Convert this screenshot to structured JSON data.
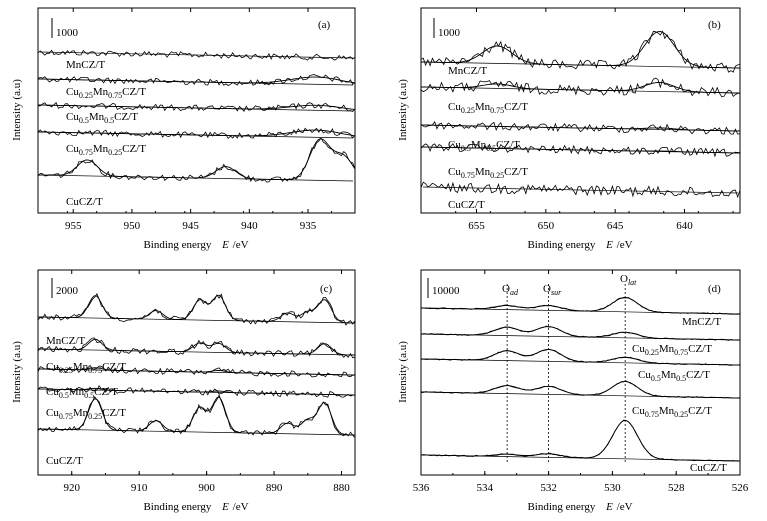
{
  "figure": {
    "panels": [
      {
        "tag": "(a)",
        "scale_bar": "1000",
        "xlabel_text": "Binding energy",
        "xlabel_var": "E",
        "xlabel_unit": "/eV",
        "ylabel": "Intensity (a.u)",
        "ticks": [
          "955",
          "950",
          "945",
          "940",
          "935"
        ],
        "xrange": [
          958,
          931
        ],
        "samples": [
          "MnCZ/T",
          "Cu0.25Mn0.75CZ/T",
          "Cu0.5Mn0.5CZ/T",
          "Cu0.75Mn0.25CZ/T",
          "CuCZ/T"
        ],
        "peak_positions": [
          934.3,
          932.0,
          942.0,
          953.8
        ]
      },
      {
        "tag": "(b)",
        "scale_bar": "1000",
        "xlabel_text": "Binding energy",
        "xlabel_var": "E",
        "xlabel_unit": "/eV",
        "ylabel": "Intensity (a.u)",
        "ticks": [
          "655",
          "650",
          "645",
          "640"
        ],
        "xrange": [
          659,
          636
        ],
        "samples": [
          "MnCZ/T",
          "Cu0.25Mn0.75CZ/T",
          "Cu0.5Mn0.5CZ/T",
          "Cu0.75Mn0.25CZ/T",
          "CuCZ/T"
        ],
        "peak_positions": [
          641.8,
          653.5
        ]
      },
      {
        "tag": "(c)",
        "scale_bar": "2000",
        "xlabel_text": "Binding energy",
        "xlabel_var": "E",
        "xlabel_unit": "/eV",
        "ylabel": "Intensity (a.u)",
        "ticks": [
          "920",
          "910",
          "900",
          "890",
          "880"
        ],
        "xrange": [
          925,
          878
        ],
        "samples": [
          "MnCZ/T",
          "Cu0.25Mn0.75CZ/T",
          "Cu0.5Mn0.5CZ/T",
          "Cu0.75Mn0.25CZ/T",
          "CuCZ/T"
        ],
        "peak_positions": [
          916.5,
          907.5,
          901.0,
          898.2,
          888.0,
          885.0,
          882.5
        ]
      },
      {
        "tag": "(d)",
        "scale_bar": "10000",
        "xlabel_text": "Binding energy",
        "xlabel_var": "E",
        "xlabel_unit": "/eV",
        "ylabel": "Intensity (a.u)",
        "ticks": [
          "536",
          "534",
          "532",
          "530",
          "528",
          "526"
        ],
        "xrange": [
          536,
          526
        ],
        "samples": [
          "MnCZ/T",
          "Cu0.25Mn0.75CZ/T",
          "Cu0.5Mn0.5CZ/T",
          "Cu0.75Mn0.25CZ/T",
          "CuCZ/T"
        ],
        "peak_labels": [
          "O",
          "ad",
          "O",
          "sur",
          "O",
          "lat"
        ],
        "peak_positions": [
          533.3,
          532.0,
          529.6
        ]
      }
    ]
  },
  "chart_data": [
    {
      "type": "line",
      "title": "(a)",
      "xlabel": "Binding energy E /eV",
      "ylabel": "Intensity (a.u)",
      "xlim": [
        958,
        931
      ],
      "series": [
        {
          "name": "MnCZ/T",
          "peaks": []
        },
        {
          "name": "Cu0.25Mn0.75CZ/T",
          "peaks": [
            {
              "x": 934.3,
              "h": 0.6
            }
          ]
        },
        {
          "name": "Cu0.5Mn0.5CZ/T",
          "peaks": [
            {
              "x": 934.3,
              "h": 0.5
            }
          ]
        },
        {
          "name": "Cu0.75Mn0.25CZ/T",
          "peaks": [
            {
              "x": 934.3,
              "h": 0.6
            }
          ]
        },
        {
          "name": "CuCZ/T",
          "peaks": [
            {
              "x": 934.0,
              "h": 1.0
            },
            {
              "x": 932.0,
              "h": 0.6
            },
            {
              "x": 942.0,
              "h": 0.3
            },
            {
              "x": 953.8,
              "h": 0.4
            }
          ]
        }
      ]
    },
    {
      "type": "line",
      "title": "(b)",
      "xlabel": "Binding energy E /eV",
      "ylabel": "Intensity (a.u)",
      "xlim": [
        659,
        636
      ],
      "series": [
        {
          "name": "MnCZ/T",
          "peaks": [
            {
              "x": 641.8,
              "h": 1.0
            },
            {
              "x": 653.5,
              "h": 0.5
            }
          ]
        },
        {
          "name": "Cu0.25Mn0.75CZ/T",
          "peaks": [
            {
              "x": 641.8,
              "h": 0.5
            },
            {
              "x": 653.5,
              "h": 0.25
            }
          ]
        },
        {
          "name": "Cu0.5Mn0.5CZ/T",
          "peaks": [
            {
              "x": 641.8,
              "h": 0.2
            }
          ]
        },
        {
          "name": "Cu0.75Mn0.25CZ/T",
          "peaks": [
            {
              "x": 641.8,
              "h": 0.1
            }
          ]
        },
        {
          "name": "CuCZ/T",
          "peaks": []
        }
      ]
    },
    {
      "type": "line",
      "title": "(c)",
      "xlabel": "Binding energy E /eV",
      "ylabel": "Intensity (a.u)",
      "xlim": [
        925,
        878
      ],
      "series": [
        {
          "name": "MnCZ/T",
          "peaks": [
            {
              "x": 916.5,
              "h": 0.9
            },
            {
              "x": 907.5,
              "h": 0.35
            },
            {
              "x": 901.0,
              "h": 0.8
            },
            {
              "x": 898.2,
              "h": 1.0
            },
            {
              "x": 888.0,
              "h": 0.35
            },
            {
              "x": 885.0,
              "h": 0.4
            },
            {
              "x": 882.5,
              "h": 0.9
            }
          ]
        },
        {
          "name": "Cu0.25Mn0.75CZ/T",
          "peaks": [
            {
              "x": 916.5,
              "h": 0.6
            },
            {
              "x": 901.0,
              "h": 0.5
            },
            {
              "x": 898.2,
              "h": 0.5
            },
            {
              "x": 882.5,
              "h": 0.6
            }
          ]
        },
        {
          "name": "Cu0.5Mn0.5CZ/T",
          "peaks": [
            {
              "x": 916.5,
              "h": 0.3
            },
            {
              "x": 898.2,
              "h": 0.25
            }
          ]
        },
        {
          "name": "Cu0.75Mn0.25CZ/T",
          "peaks": [
            {
              "x": 916.5,
              "h": 0.25
            },
            {
              "x": 898.2,
              "h": 0.2
            }
          ]
        },
        {
          "name": "CuCZ/T",
          "peaks": [
            {
              "x": 916.5,
              "h": 0.9
            },
            {
              "x": 907.5,
              "h": 0.3
            },
            {
              "x": 901.0,
              "h": 0.7
            },
            {
              "x": 898.2,
              "h": 1.0
            },
            {
              "x": 888.0,
              "h": 0.3
            },
            {
              "x": 885.0,
              "h": 0.4
            },
            {
              "x": 882.5,
              "h": 0.9
            }
          ]
        }
      ]
    },
    {
      "type": "line",
      "title": "(d)",
      "xlabel": "Binding energy E /eV",
      "ylabel": "Intensity (a.u)",
      "xlim": [
        536,
        526
      ],
      "series": [
        {
          "name": "MnCZ/T",
          "peaks": [
            {
              "x": 533.3,
              "h": 0.25
            },
            {
              "x": 532.0,
              "h": 0.3
            },
            {
              "x": 529.6,
              "h": 0.9
            }
          ]
        },
        {
          "name": "Cu0.25Mn0.75CZ/T",
          "peaks": [
            {
              "x": 533.3,
              "h": 0.6
            },
            {
              "x": 532.0,
              "h": 0.7
            },
            {
              "x": 529.6,
              "h": 0.4
            }
          ]
        },
        {
          "name": "Cu0.5Mn0.5CZ/T",
          "peaks": [
            {
              "x": 533.3,
              "h": 0.7
            },
            {
              "x": 532.0,
              "h": 0.85
            },
            {
              "x": 529.6,
              "h": 0.4
            }
          ]
        },
        {
          "name": "Cu0.75Mn0.25CZ/T",
          "peaks": [
            {
              "x": 533.3,
              "h": 0.5
            },
            {
              "x": 532.0,
              "h": 0.5
            },
            {
              "x": 529.6,
              "h": 0.9
            }
          ]
        },
        {
          "name": "CuCZ/T",
          "peaks": [
            {
              "x": 533.3,
              "h": 0.1
            },
            {
              "x": 532.0,
              "h": 0.15
            },
            {
              "x": 529.6,
              "h": 1.6
            }
          ]
        }
      ]
    }
  ]
}
